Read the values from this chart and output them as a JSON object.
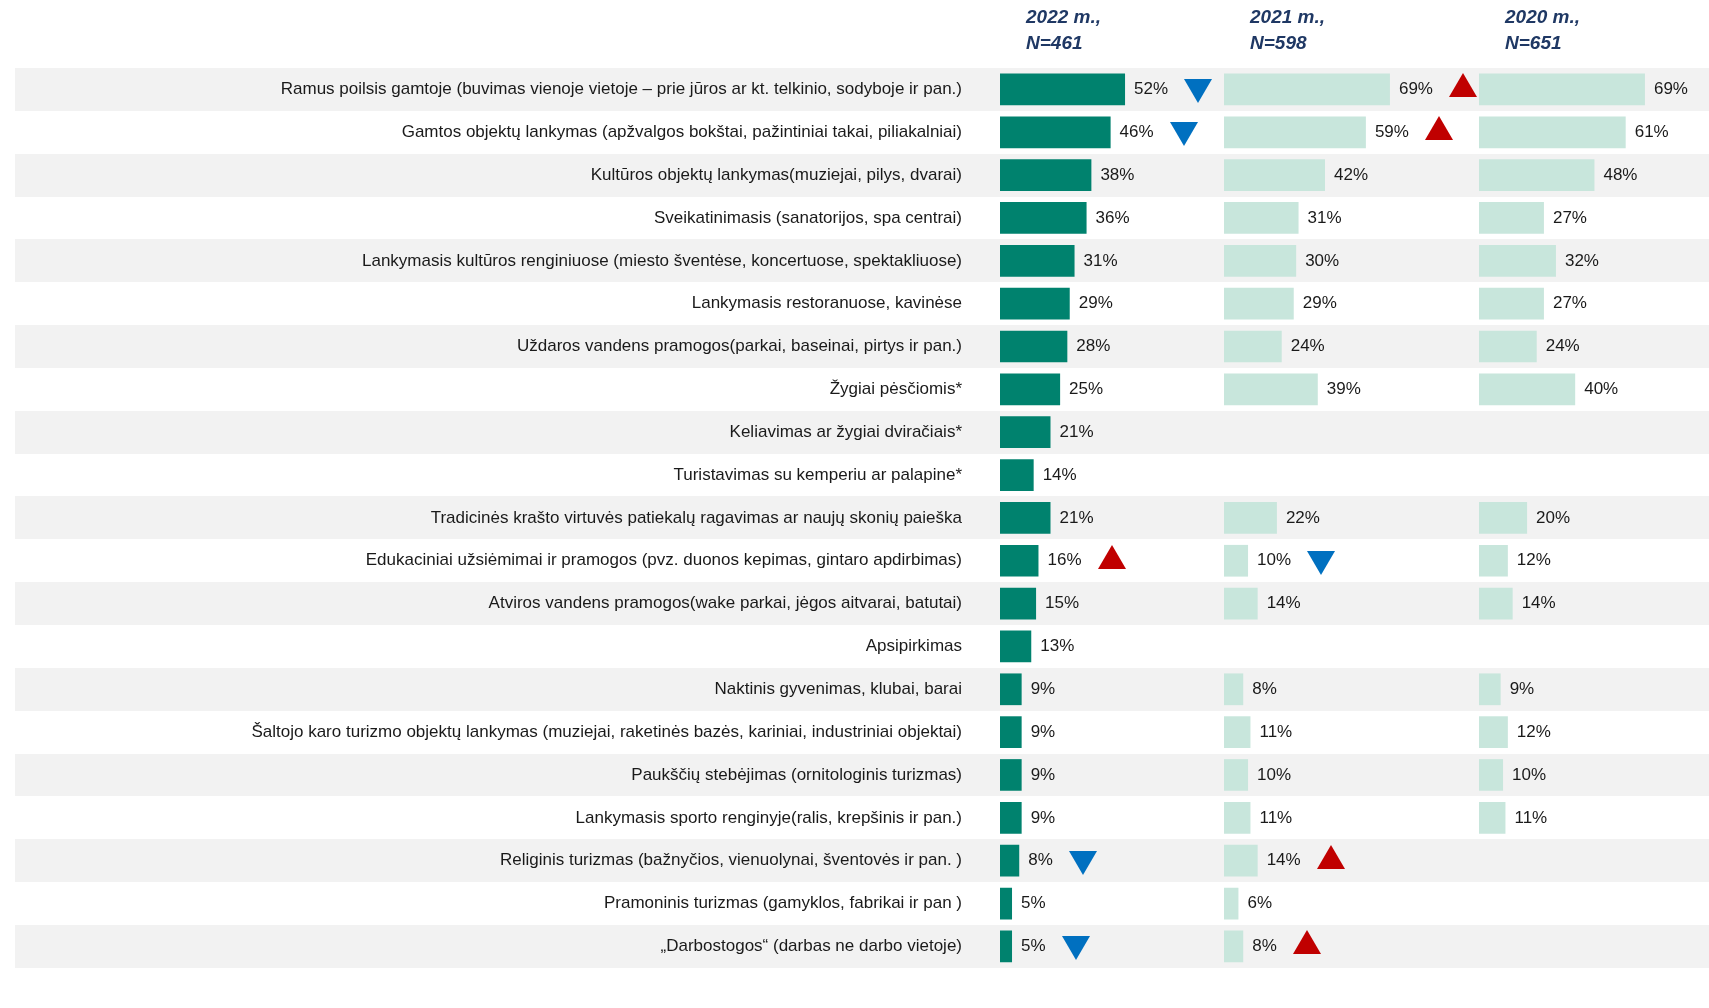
{
  "chart_data": [
    {
      "type": "bar",
      "orientation": "horizontal",
      "title": "2022 m.,\nN=461",
      "tick_labels": "y",
      "color": "#00826e",
      "categories": [
        "Ramus poilsis gamtoje (buvimas vienoje vietoje – prie jūros ar kt. telkinio, sodyboje ir pan.)",
        "Gamtos objektų lankymas (apžvalgos bokštai, pažintiniai takai, piliakalniai)",
        "Kultūros objektų lankymas(muziejai, pilys, dvarai)",
        "Sveikatinimasis (sanatorijos, spa centrai)",
        "Lankymasis kultūros renginiuose (miesto šventėse, koncertuose, spektakliuose)",
        "Lankymasis restoranuose, kavinėse",
        "Uždaros vandens pramogos(parkai, baseinai, pirtys ir pan.)",
        "Žygiai pėsčiomis*",
        "Keliavimas ar žygiai dviračiais*",
        "Turistavimas su kemperiu ar palapine*",
        "Tradicinės krašto virtuvės patiekalų ragavimas ar naujų skonių paieška",
        "Edukaciniai užsiėmimai ir pramogos (pvz. duonos kepimas, gintaro apdirbimas)",
        "Atviros vandens pramogos(wake parkai, jėgos aitvarai, batutai)",
        "Apsipirkimas",
        "Naktinis gyvenimas, klubai, barai",
        "Šaltojo karo turizmo objektų lankymas (muziejai, raketinės bazės, kariniai, industriniai objektai)",
        "Paukščių stebėjimas (ornitologinis turizmas)",
        "Lankymasis sporto renginyje(ralis, krepšinis ir pan.)",
        "Religinis turizmas (bažnyčios, vienuolynai, šventovės ir pan. )",
        "Pramoninis turizmas (gamyklos, fabrikai ir pan )",
        "„Darbostogos“ (darbas ne darbo vietoje)"
      ],
      "values": [
        52,
        46,
        38,
        36,
        31,
        29,
        28,
        25,
        21,
        14,
        21,
        16,
        15,
        13,
        9,
        9,
        9,
        9,
        8,
        5,
        5
      ],
      "value_labels": [
        "52%",
        "46%",
        "38%",
        "36%",
        "31%",
        "29%",
        "28%",
        "25%",
        "21%",
        "14%",
        "21%",
        "16%",
        "15%",
        "13%",
        "9%",
        "9%",
        "9%",
        "9%",
        "8%",
        "5%",
        "5%"
      ]
    },
    {
      "type": "bar",
      "orientation": "horizontal",
      "title": "2021 m.,\nN=598",
      "tick_labels": false,
      "color": "#c8e6dc",
      "values": [
        69,
        59,
        42,
        31,
        30,
        29,
        24,
        39,
        null,
        null,
        22,
        10,
        14,
        null,
        8,
        11,
        10,
        11,
        14,
        6,
        8
      ],
      "value_labels": [
        "69%",
        "59%",
        "42%",
        "31%",
        "30%",
        "29%",
        "24%",
        "39%",
        null,
        null,
        "22%",
        "10%",
        "14%",
        null,
        "8%",
        "11%",
        "10%",
        "11%",
        "14%",
        "6%",
        "8%"
      ]
    },
    {
      "type": "bar",
      "orientation": "horizontal",
      "title": "2020 m.,\nN=651",
      "tick_labels": false,
      "color": "#c8e6dc",
      "values": [
        69,
        61,
        48,
        27,
        32,
        27,
        24,
        40,
        null,
        null,
        20,
        12,
        14,
        null,
        9,
        12,
        10,
        11,
        null,
        null,
        null
      ],
      "value_labels": [
        "69%",
        "61%",
        "48%",
        "27%",
        "32%",
        "27%",
        "24%",
        "40%",
        null,
        null,
        "20%",
        "12%",
        "14%",
        null,
        "9%",
        "12%",
        "10%",
        "11%",
        null,
        null,
        null
      ]
    }
  ]
}
